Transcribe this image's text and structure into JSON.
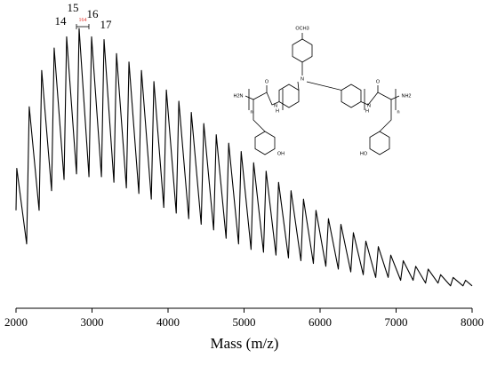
{
  "chart_data": {
    "type": "line",
    "x_label": "Mass (m/z)",
    "xlim": [
      2000,
      8000
    ],
    "xticks": [
      2000,
      3000,
      4000,
      5000,
      6000,
      7000,
      8000
    ],
    "ylim": [
      0,
      100
    ],
    "color": "#000000",
    "x": [
      2000,
      2010,
      2140,
      2174,
      2304,
      2338,
      2468,
      2502,
      2632,
      2666,
      2796,
      2830,
      2960,
      2994,
      3124,
      3158,
      3288,
      3322,
      3452,
      3486,
      3616,
      3650,
      3780,
      3814,
      3944,
      3978,
      4108,
      4142,
      4272,
      4306,
      4436,
      4470,
      4600,
      4634,
      4764,
      4798,
      4928,
      4962,
      5092,
      5126,
      5256,
      5290,
      5420,
      5454,
      5584,
      5618,
      5748,
      5782,
      5912,
      5946,
      6076,
      6110,
      6240,
      6274,
      6404,
      6438,
      6568,
      6602,
      6732,
      6766,
      6896,
      6930,
      7060,
      7094,
      7224,
      7258,
      7388,
      7422,
      7552,
      7586,
      7716,
      7750,
      7880,
      7914,
      8000
    ],
    "values": [
      35,
      50,
      23,
      72,
      35,
      85,
      42,
      93,
      46,
      97,
      48,
      100,
      47,
      97,
      47,
      96,
      45,
      91,
      43,
      88,
      41,
      85,
      39,
      81,
      36,
      78,
      34,
      74,
      32,
      70,
      30,
      66,
      28,
      62,
      25,
      59,
      23,
      56,
      21,
      52,
      20,
      49,
      19,
      45,
      18,
      42,
      17,
      39,
      16,
      35,
      15,
      32,
      14,
      30,
      13,
      27,
      12,
      24,
      11,
      22,
      11,
      19,
      10,
      17,
      10,
      15,
      9,
      14,
      9,
      12,
      8,
      11,
      8,
      10,
      8
    ],
    "annotations": [
      "14",
      "15",
      "16",
      "17",
      "164"
    ]
  },
  "structure": {
    "labels": [
      "OCH3",
      "N",
      "H2N",
      "O",
      "H",
      "N",
      "n",
      "OH",
      "O",
      "H",
      "N",
      "NH2",
      "n",
      "HO"
    ]
  }
}
